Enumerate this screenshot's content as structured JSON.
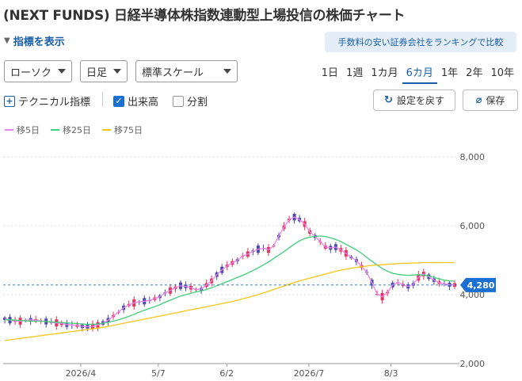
{
  "title": "(NEXT FUNDS) 日経半導体株指数連動型上場投信の株価チャート",
  "indicator_toggle": {
    "arrow": "▼",
    "label": "指標を表示"
  },
  "banner": "手数料の安い証券会社をランキングで比較",
  "controls": {
    "chart_type": "ローソク",
    "period_unit": "日足",
    "scale": "標準スケール",
    "ranges": [
      "1日",
      "1週",
      "1カ月",
      "6カ月",
      "1年",
      "2年",
      "10年"
    ],
    "active_range": "6カ月"
  },
  "options": {
    "technical": "テクニカル指標",
    "volume": "出来高",
    "split": "分割"
  },
  "buttons": {
    "reset": "設定を戻す",
    "save": "保存"
  },
  "legend": [
    {
      "label": "移5日",
      "color": "#ee82ee"
    },
    {
      "label": "移25日",
      "color": "#3ecf7a"
    },
    {
      "label": "移75日",
      "color": "#f5c518"
    }
  ],
  "chart_data": {
    "type": "line",
    "y_ticks": [
      "8,000",
      "6,000",
      "4,000",
      "2,000"
    ],
    "x_ticks": [
      "2026/4",
      "5/7",
      "6/2",
      "2026/7",
      "8/3"
    ],
    "ylim": [
      2000,
      8000
    ],
    "current_price_label": "4,280",
    "colors": {
      "up": "#e8325a",
      "down": "#4b4ba8",
      "ma5": "#ee82ee",
      "ma25": "#3ecf7a",
      "ma75": "#f5c518",
      "last": "#1a6fd3"
    },
    "series": [
      {
        "name": "移5日",
        "values": [
          3300,
          3260,
          3240,
          3230,
          3250,
          3270,
          3260,
          3240,
          3220,
          3200,
          3180,
          3160,
          3130,
          3120,
          3100,
          3080,
          3070,
          3080,
          3120,
          3180,
          3260,
          3380,
          3500,
          3620,
          3700,
          3760,
          3790,
          3810,
          3840,
          3880,
          3940,
          4050,
          4120,
          4200,
          4260,
          4240,
          4200,
          4150,
          4160,
          4280,
          4400,
          4580,
          4720,
          4840,
          4920,
          5000,
          5120,
          5180,
          5260,
          5320,
          5350,
          5300,
          5420,
          5700,
          5960,
          6180,
          6250,
          6180,
          6050,
          5820,
          5690,
          5540,
          5380,
          5360,
          5380,
          5300,
          5200,
          5080,
          4990,
          4820,
          4650,
          4350,
          4020,
          3940,
          4060,
          4280,
          4360,
          4280,
          4240,
          4300,
          4500,
          4600,
          4520,
          4420,
          4350,
          4310,
          4290,
          4280
        ]
      },
      {
        "name": "移25日",
        "values": [
          3270,
          3270,
          3260,
          3250,
          3240,
          3240,
          3230,
          3230,
          3220,
          3210,
          3200,
          3190,
          3180,
          3170,
          3160,
          3150,
          3140,
          3140,
          3150,
          3170,
          3200,
          3230,
          3270,
          3320,
          3370,
          3430,
          3490,
          3550,
          3600,
          3650,
          3710,
          3780,
          3840,
          3900,
          3960,
          4000,
          4040,
          4080,
          4110,
          4150,
          4200,
          4260,
          4320,
          4380,
          4440,
          4500,
          4560,
          4630,
          4700,
          4780,
          4860,
          4950,
          5050,
          5150,
          5250,
          5360,
          5470,
          5560,
          5630,
          5670,
          5690,
          5700,
          5690,
          5650,
          5600,
          5540,
          5460,
          5380,
          5300,
          5200,
          5080,
          4970,
          4860,
          4760,
          4680,
          4620,
          4590,
          4570,
          4560,
          4570,
          4580,
          4570,
          4540,
          4500,
          4460,
          4420,
          4400,
          4390
        ]
      },
      {
        "name": "移75日",
        "values": [
          2670,
          2690,
          2710,
          2730,
          2750,
          2770,
          2790,
          2810,
          2830,
          2850,
          2870,
          2890,
          2910,
          2930,
          2950,
          2970,
          2990,
          3010,
          3030,
          3050,
          3080,
          3110,
          3140,
          3170,
          3200,
          3230,
          3260,
          3290,
          3320,
          3350,
          3380,
          3410,
          3440,
          3470,
          3500,
          3530,
          3560,
          3590,
          3620,
          3650,
          3680,
          3710,
          3740,
          3770,
          3800,
          3840,
          3880,
          3920,
          3960,
          4000,
          4050,
          4100,
          4150,
          4200,
          4250,
          4300,
          4350,
          4400,
          4440,
          4480,
          4520,
          4560,
          4600,
          4640,
          4680,
          4710,
          4740,
          4770,
          4790,
          4810,
          4830,
          4850,
          4860,
          4870,
          4880,
          4890,
          4900,
          4910,
          4910,
          4920,
          4920,
          4930,
          4930,
          4930,
          4930,
          4930,
          4930,
          4930
        ]
      }
    ]
  }
}
